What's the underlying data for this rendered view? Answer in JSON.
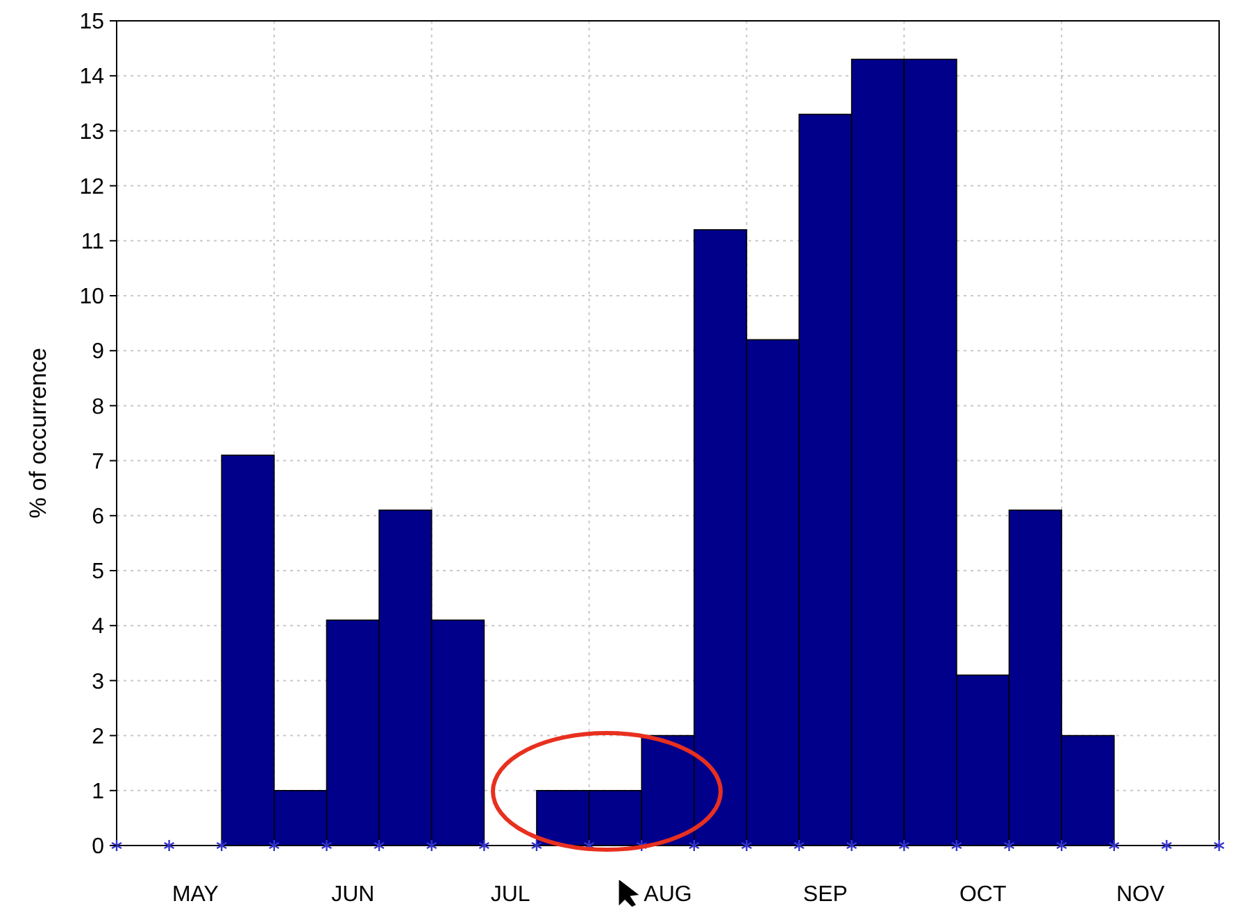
{
  "chart_data": {
    "type": "bar",
    "ylabel": "% of occurrence",
    "categories": [
      null,
      "MAY",
      null,
      null,
      "JUN",
      null,
      null,
      "JUL",
      null,
      null,
      "AUG",
      null,
      null,
      "SEP",
      null,
      null,
      "OCT",
      null,
      null,
      "NOV",
      null
    ],
    "values": [
      0,
      0,
      7.1,
      1,
      4.1,
      6.1,
      4.1,
      0,
      1,
      1,
      2,
      11.2,
      9.2,
      13.3,
      14.3,
      14.3,
      3.1,
      6.1,
      2,
      0,
      0
    ],
    "color": "#00008b",
    "ylim": [
      0,
      15
    ],
    "yticks": [
      0,
      1,
      2,
      3,
      4,
      5,
      6,
      7,
      8,
      9,
      10,
      11,
      12,
      13,
      14,
      15
    ],
    "grid": true
  }
}
